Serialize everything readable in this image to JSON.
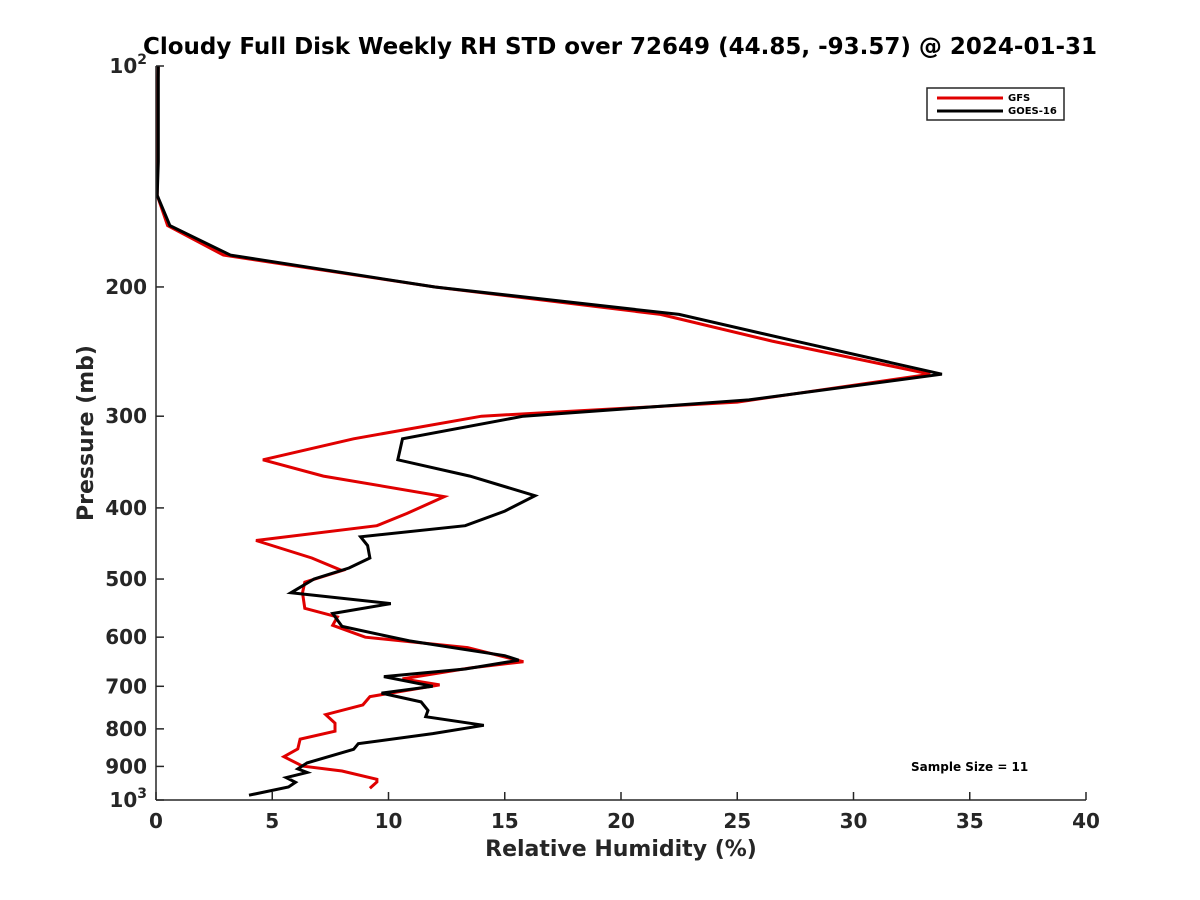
{
  "chart_data": {
    "type": "line",
    "title": "Cloudy Full Disk Weekly RH STD over 72649 (44.85, -93.57) @ 2024-01-31",
    "xlabel": "Relative Humidity (%)",
    "ylabel": "Pressure (mb)",
    "xlim": [
      0,
      40
    ],
    "ylim": [
      100,
      1000
    ],
    "y_scale": "log",
    "y_reversed": true,
    "x_ticks": [
      0,
      5,
      10,
      15,
      20,
      25,
      30,
      35,
      40
    ],
    "x_tick_labels": [
      "0",
      "5",
      "10",
      "15",
      "20",
      "25",
      "30",
      "35",
      "40"
    ],
    "y_ticks": [
      100,
      200,
      300,
      400,
      500,
      600,
      700,
      800,
      900,
      1000
    ],
    "y_tick_labels": [
      {
        "base": "10",
        "exp": "2"
      },
      {
        "base": "200",
        "exp": ""
      },
      {
        "base": "300",
        "exp": ""
      },
      {
        "base": "400",
        "exp": ""
      },
      {
        "base": "500",
        "exp": ""
      },
      {
        "base": "600",
        "exp": ""
      },
      {
        "base": "700",
        "exp": ""
      },
      {
        "base": "800",
        "exp": ""
      },
      {
        "base": "900",
        "exp": ""
      },
      {
        "base": "10",
        "exp": "3"
      }
    ],
    "grid": false,
    "legend_position": "top-right",
    "annotation": "Sample Size = 11",
    "series": [
      {
        "name": "GFS",
        "color": "#e00000",
        "points": [
          [
            0.1,
            100
          ],
          [
            0.05,
            115
          ],
          [
            0.05,
            135
          ],
          [
            0.05,
            150
          ],
          [
            0.5,
            165
          ],
          [
            2.9,
            181
          ],
          [
            12.0,
            200
          ],
          [
            21.7,
            218
          ],
          [
            26.5,
            237
          ],
          [
            33.3,
            263
          ],
          [
            25.0,
            287
          ],
          [
            14.0,
            300
          ],
          [
            8.5,
            322
          ],
          [
            4.6,
            344
          ],
          [
            7.2,
            362
          ],
          [
            12.4,
            386
          ],
          [
            10.8,
            407
          ],
          [
            9.5,
            423
          ],
          [
            4.3,
            443
          ],
          [
            6.7,
            468
          ],
          [
            8.0,
            487
          ],
          [
            6.4,
            505
          ],
          [
            6.3,
            522
          ],
          [
            6.4,
            548
          ],
          [
            7.8,
            563
          ],
          [
            7.6,
            578
          ],
          [
            9.0,
            600
          ],
          [
            13.4,
            620
          ],
          [
            15.2,
            641
          ],
          [
            15.8,
            648
          ],
          [
            13.5,
            661
          ],
          [
            10.6,
            684
          ],
          [
            12.2,
            697
          ],
          [
            9.2,
            723
          ],
          [
            8.9,
            742
          ],
          [
            7.3,
            765
          ],
          [
            7.7,
            786
          ],
          [
            7.7,
            806
          ],
          [
            6.2,
            826
          ],
          [
            6.1,
            852
          ],
          [
            5.5,
            873
          ],
          [
            6.3,
            899
          ],
          [
            8.0,
            913
          ],
          [
            9.5,
            937
          ],
          [
            9.5,
            945
          ],
          [
            9.2,
            964
          ]
        ]
      },
      {
        "name": "GOES-16",
        "color": "#000000",
        "points": [
          [
            0.1,
            100
          ],
          [
            0.1,
            115
          ],
          [
            0.1,
            135
          ],
          [
            0.05,
            150
          ],
          [
            0.6,
            165
          ],
          [
            3.2,
            181
          ],
          [
            12.0,
            200
          ],
          [
            22.5,
            218
          ],
          [
            27.5,
            237
          ],
          [
            33.8,
            263
          ],
          [
            25.5,
            285
          ],
          [
            15.8,
            300
          ],
          [
            10.6,
            322
          ],
          [
            10.4,
            344
          ],
          [
            13.5,
            362
          ],
          [
            16.3,
            385
          ],
          [
            15.0,
            404
          ],
          [
            13.3,
            423
          ],
          [
            8.8,
            438
          ],
          [
            9.1,
            450
          ],
          [
            9.2,
            468
          ],
          [
            8.3,
            483
          ],
          [
            6.8,
            500
          ],
          [
            5.8,
            522
          ],
          [
            10.1,
            540
          ],
          [
            7.6,
            557
          ],
          [
            8.0,
            580
          ],
          [
            10.9,
            607
          ],
          [
            15.0,
            636
          ],
          [
            15.6,
            645
          ],
          [
            13.3,
            663
          ],
          [
            9.8,
            679
          ],
          [
            11.9,
            700
          ],
          [
            9.7,
            715
          ],
          [
            11.4,
            735
          ],
          [
            11.7,
            755
          ],
          [
            11.6,
            770
          ],
          [
            14.1,
            791
          ],
          [
            11.9,
            812
          ],
          [
            8.7,
            838
          ],
          [
            8.5,
            853
          ],
          [
            6.5,
            890
          ],
          [
            6.1,
            907
          ],
          [
            6.5,
            917
          ],
          [
            5.6,
            932
          ],
          [
            6.0,
            946
          ],
          [
            5.7,
            960
          ],
          [
            4.0,
            985
          ]
        ]
      }
    ]
  }
}
